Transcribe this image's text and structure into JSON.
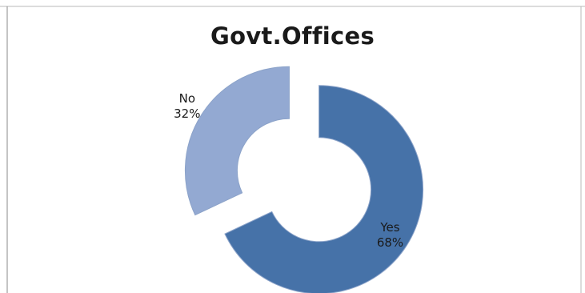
{
  "chart_data": {
    "type": "pie",
    "style": "exploded-donut",
    "title": "Govt.Offices",
    "categories": [
      "Yes",
      "No"
    ],
    "values": [
      68,
      32
    ],
    "unit": "%",
    "data_labels": [
      {
        "category": "Yes",
        "percent": "68%"
      },
      {
        "category": "No",
        "percent": "32%"
      }
    ],
    "colors": {
      "Yes": "#4672A8",
      "No": "#93A9D2",
      "border": "#8CA3C9"
    },
    "legend": "none"
  }
}
